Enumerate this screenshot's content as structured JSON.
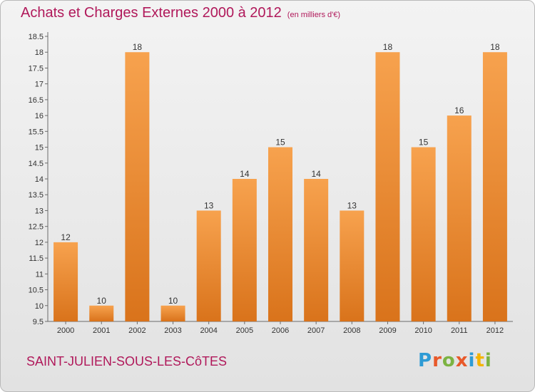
{
  "title": "Achats et Charges Externes 2000 à 2012",
  "unit_note": "(en milliers d'€)",
  "commune": "SAINT-JULIEN-SOUS-LES-CôTES",
  "brand": {
    "text": "Proxiti",
    "letter_colors": [
      "#2e9bd5",
      "#e8592a",
      "#7cb342",
      "#e8592a",
      "#2e9bd5",
      "#f4b400",
      "#7cb342"
    ]
  },
  "chart_data": {
    "type": "bar",
    "title": "Achats et Charges Externes 2000 à 2012",
    "xlabel": "",
    "ylabel": "",
    "categories": [
      "2000",
      "2001",
      "2002",
      "2003",
      "2004",
      "2005",
      "2006",
      "2007",
      "2008",
      "2009",
      "2010",
      "2011",
      "2012"
    ],
    "values": [
      12,
      10,
      18,
      10,
      13,
      14,
      15,
      14,
      13,
      18,
      15,
      16,
      18
    ],
    "ylim": [
      9.5,
      18.5
    ],
    "yticks": [
      "9.5",
      "10",
      "10.5",
      "11",
      "11.5",
      "12",
      "12.5",
      "13",
      "13.5",
      "14",
      "14.5",
      "15",
      "15.5",
      "16",
      "16.5",
      "17",
      "17.5",
      "18",
      "18.5"
    ],
    "grid": false,
    "colors": {
      "bar_light": "#f7a24e",
      "bar_dark": "#d9731b",
      "axis": "#6b6b6b"
    }
  }
}
